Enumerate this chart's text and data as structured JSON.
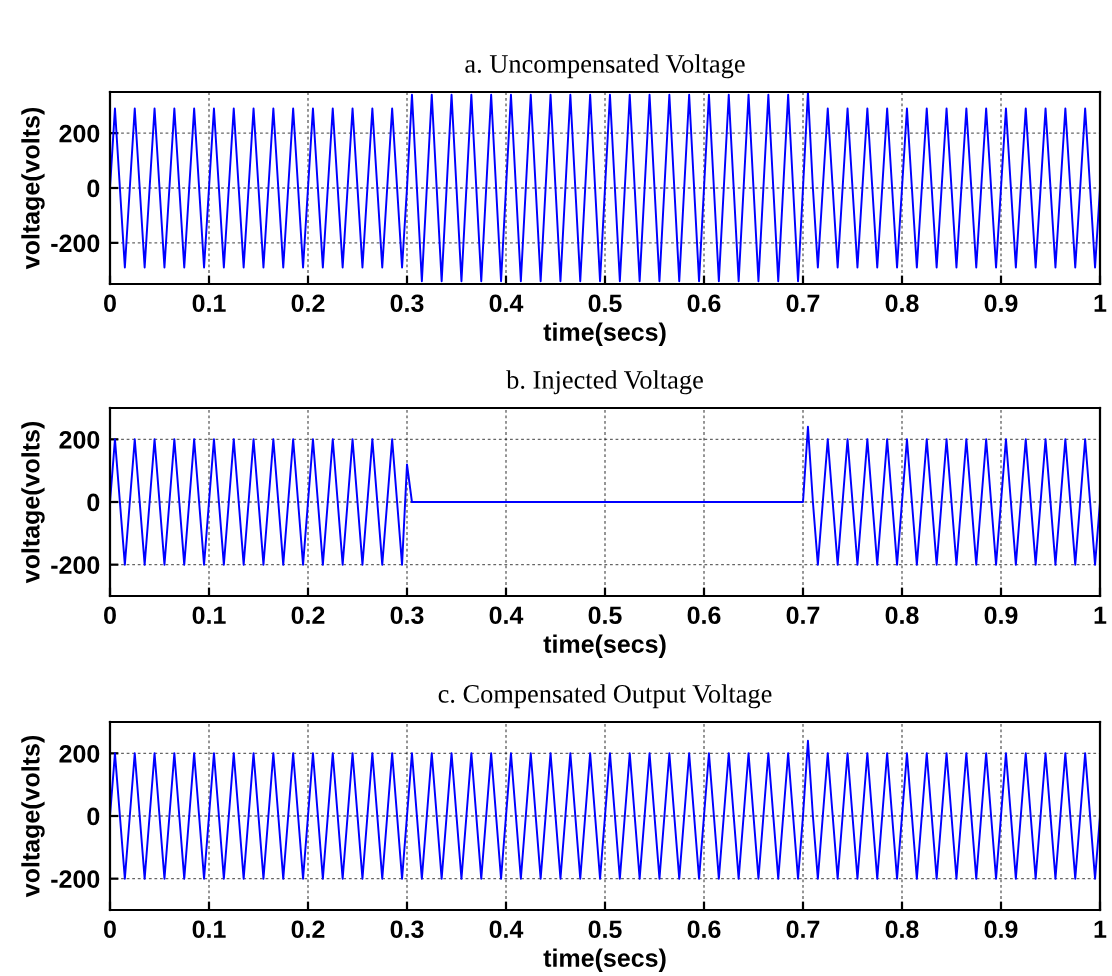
{
  "chart_data": [
    {
      "type": "line",
      "title": "a. Uncompensated Voltage",
      "xlabel": "time(secs)",
      "ylabel": "voltage(volts)",
      "xlim": [
        0,
        1
      ],
      "xticks": [
        0,
        0.1,
        0.2,
        0.3,
        0.4,
        0.5,
        0.6,
        0.7,
        0.8,
        0.9,
        1
      ],
      "ylim": [
        -350,
        350
      ],
      "yticks": [
        -200,
        0,
        200
      ],
      "grid": true,
      "x": [
        0,
        0.005,
        0.01,
        0.015,
        0.02,
        0.025,
        0.03,
        0.035,
        0.04,
        0.045,
        0.05,
        0.055,
        0.06,
        0.065,
        0.07,
        0.075,
        0.08,
        0.085,
        0.09,
        0.095,
        0.1,
        0.105,
        0.11,
        0.115,
        0.12,
        0.125,
        0.13,
        0.135,
        0.14,
        0.145,
        0.15,
        0.155,
        0.16,
        0.165,
        0.17,
        0.175,
        0.18,
        0.185,
        0.19,
        0.195,
        0.2,
        0.205,
        0.21,
        0.215,
        0.22,
        0.225,
        0.23,
        0.235,
        0.24,
        0.245,
        0.25,
        0.255,
        0.26,
        0.265,
        0.27,
        0.275,
        0.28,
        0.285,
        0.29,
        0.295,
        0.3,
        0.305,
        0.31,
        0.315,
        0.32,
        0.325,
        0.33,
        0.335,
        0.34,
        0.345,
        0.35,
        0.355,
        0.36,
        0.365,
        0.37,
        0.375,
        0.38,
        0.385,
        0.39,
        0.395,
        0.4,
        0.405,
        0.41,
        0.415,
        0.42,
        0.425,
        0.43,
        0.435,
        0.44,
        0.445,
        0.45,
        0.455,
        0.46,
        0.465,
        0.47,
        0.475,
        0.48,
        0.485,
        0.49,
        0.495,
        0.5,
        0.505,
        0.51,
        0.515,
        0.52,
        0.525,
        0.53,
        0.535,
        0.54,
        0.545,
        0.55,
        0.555,
        0.56,
        0.565,
        0.57,
        0.575,
        0.58,
        0.585,
        0.59,
        0.595,
        0.6,
        0.605,
        0.61,
        0.615,
        0.62,
        0.625,
        0.63,
        0.635,
        0.64,
        0.645,
        0.65,
        0.655,
        0.66,
        0.665,
        0.67,
        0.675,
        0.68,
        0.685,
        0.69,
        0.695,
        0.7,
        0.705,
        0.71,
        0.715,
        0.72,
        0.725,
        0.73,
        0.735,
        0.74,
        0.745,
        0.75,
        0.755,
        0.76,
        0.765,
        0.77,
        0.775,
        0.78,
        0.785,
        0.79,
        0.795,
        0.8,
        0.805,
        0.81,
        0.815,
        0.82,
        0.825,
        0.83,
        0.835,
        0.84,
        0.845,
        0.85,
        0.855,
        0.86,
        0.865,
        0.87,
        0.875,
        0.88,
        0.885,
        0.89,
        0.895,
        0.9,
        0.905,
        0.91,
        0.915,
        0.92,
        0.925,
        0.93,
        0.935,
        0.94,
        0.945,
        0.95,
        0.955,
        0.96,
        0.965,
        0.97,
        0.975,
        0.98,
        0.985,
        0.99,
        0.995,
        1
      ],
      "series": [
        {
          "color": "#0000ff",
          "values": [
            0,
            290,
            0,
            -290,
            0,
            290,
            0,
            -290,
            0,
            290,
            0,
            -290,
            0,
            290,
            0,
            -290,
            0,
            290,
            0,
            -290,
            0,
            290,
            0,
            -290,
            0,
            290,
            0,
            -290,
            0,
            290,
            0,
            -290,
            0,
            290,
            0,
            -290,
            0,
            290,
            0,
            -290,
            0,
            290,
            0,
            -290,
            0,
            290,
            0,
            -290,
            0,
            290,
            0,
            -290,
            0,
            290,
            0,
            -290,
            0,
            290,
            0,
            -290,
            0,
            340,
            0,
            -340,
            0,
            340,
            0,
            -340,
            0,
            340,
            0,
            -340,
            0,
            340,
            0,
            -340,
            0,
            340,
            0,
            -340,
            0,
            340,
            0,
            -340,
            0,
            340,
            0,
            -340,
            0,
            340,
            0,
            -340,
            0,
            340,
            0,
            -340,
            0,
            340,
            0,
            -340,
            0,
            340,
            0,
            -340,
            0,
            340,
            0,
            -340,
            0,
            340,
            0,
            -340,
            0,
            340,
            0,
            -340,
            0,
            340,
            0,
            -340,
            0,
            340,
            0,
            -340,
            0,
            340,
            0,
            -340,
            0,
            340,
            0,
            -340,
            0,
            340,
            0,
            -340,
            0,
            340,
            0,
            -340,
            0,
            350,
            0,
            -290,
            0,
            290,
            0,
            -290,
            0,
            290,
            0,
            -290,
            0,
            290,
            0,
            -290,
            0,
            290,
            0,
            -290,
            0,
            290,
            0,
            -290,
            0,
            290,
            0,
            -290,
            0,
            290,
            0,
            -290,
            0,
            290,
            0,
            -290,
            0,
            290,
            0,
            -290,
            0,
            290,
            0,
            -290,
            0,
            290,
            0,
            -290,
            0,
            290,
            0,
            -290,
            0,
            290,
            0,
            -290,
            0,
            290,
            0,
            -290,
            0
          ]
        }
      ]
    },
    {
      "type": "line",
      "title": "b. Injected Voltage",
      "xlabel": "time(secs)",
      "ylabel": "voltage(volts)",
      "xlim": [
        0,
        1
      ],
      "xticks": [
        0,
        0.1,
        0.2,
        0.3,
        0.4,
        0.5,
        0.6,
        0.7,
        0.8,
        0.9,
        1
      ],
      "ylim": [
        -300,
        300
      ],
      "yticks": [
        -200,
        0,
        200
      ],
      "grid": true,
      "series": [
        {
          "color": "#0000ff",
          "x": [
            0,
            0.005,
            0.01,
            0.015,
            0.02,
            0.025,
            0.03,
            0.035,
            0.04,
            0.045,
            0.05,
            0.055,
            0.06,
            0.065,
            0.07,
            0.075,
            0.08,
            0.085,
            0.09,
            0.095,
            0.1,
            0.105,
            0.11,
            0.115,
            0.12,
            0.125,
            0.13,
            0.135,
            0.14,
            0.145,
            0.15,
            0.155,
            0.16,
            0.165,
            0.17,
            0.175,
            0.18,
            0.185,
            0.19,
            0.195,
            0.2,
            0.205,
            0.21,
            0.215,
            0.22,
            0.225,
            0.23,
            0.235,
            0.24,
            0.245,
            0.25,
            0.255,
            0.26,
            0.265,
            0.27,
            0.275,
            0.28,
            0.285,
            0.29,
            0.295,
            0.3,
            0.305,
            0.7,
            0.705,
            0.71,
            0.715,
            0.72,
            0.725,
            0.73,
            0.735,
            0.74,
            0.745,
            0.75,
            0.755,
            0.76,
            0.765,
            0.77,
            0.775,
            0.78,
            0.785,
            0.79,
            0.795,
            0.8,
            0.805,
            0.81,
            0.815,
            0.82,
            0.825,
            0.83,
            0.835,
            0.84,
            0.845,
            0.85,
            0.855,
            0.86,
            0.865,
            0.87,
            0.875,
            0.88,
            0.885,
            0.89,
            0.895,
            0.9,
            0.905,
            0.91,
            0.915,
            0.92,
            0.925,
            0.93,
            0.935,
            0.94,
            0.945,
            0.95,
            0.955,
            0.96,
            0.965,
            0.97,
            0.975,
            0.98,
            0.985,
            0.99,
            0.995,
            1
          ],
          "values": [
            0,
            200,
            0,
            -200,
            0,
            200,
            0,
            -200,
            0,
            200,
            0,
            -200,
            0,
            200,
            0,
            -200,
            0,
            200,
            0,
            -200,
            0,
            200,
            0,
            -200,
            0,
            200,
            0,
            -200,
            0,
            200,
            0,
            -200,
            0,
            200,
            0,
            -200,
            0,
            200,
            0,
            -200,
            0,
            200,
            0,
            -200,
            0,
            200,
            0,
            -200,
            0,
            200,
            0,
            -200,
            0,
            200,
            0,
            -200,
            0,
            200,
            0,
            -200,
            120,
            0,
            0,
            240,
            0,
            -200,
            0,
            200,
            0,
            -200,
            0,
            200,
            0,
            -200,
            0,
            200,
            0,
            -200,
            0,
            200,
            0,
            -200,
            0,
            200,
            0,
            -200,
            0,
            200,
            0,
            -200,
            0,
            200,
            0,
            -200,
            0,
            200,
            0,
            -200,
            0,
            200,
            0,
            -200,
            0,
            200,
            0,
            -200,
            0,
            200,
            0,
            -200,
            0,
            200,
            0,
            -200,
            0,
            200,
            0,
            -200,
            0,
            200,
            0,
            -200,
            0
          ]
        }
      ]
    },
    {
      "type": "line",
      "title": "c. Compensated Output Voltage",
      "xlabel": "time(secs)",
      "ylabel": "voltage(volts)",
      "xlim": [
        0,
        1
      ],
      "xticks": [
        0,
        0.1,
        0.2,
        0.3,
        0.4,
        0.5,
        0.6,
        0.7,
        0.8,
        0.9,
        1
      ],
      "ylim": [
        -300,
        300
      ],
      "yticks": [
        -200,
        0,
        200
      ],
      "grid": true,
      "x": [
        0,
        0.005,
        0.01,
        0.015,
        0.02,
        0.025,
        0.03,
        0.035,
        0.04,
        0.045,
        0.05,
        0.055,
        0.06,
        0.065,
        0.07,
        0.075,
        0.08,
        0.085,
        0.09,
        0.095,
        0.1,
        0.105,
        0.11,
        0.115,
        0.12,
        0.125,
        0.13,
        0.135,
        0.14,
        0.145,
        0.15,
        0.155,
        0.16,
        0.165,
        0.17,
        0.175,
        0.18,
        0.185,
        0.19,
        0.195,
        0.2,
        0.205,
        0.21,
        0.215,
        0.22,
        0.225,
        0.23,
        0.235,
        0.24,
        0.245,
        0.25,
        0.255,
        0.26,
        0.265,
        0.27,
        0.275,
        0.28,
        0.285,
        0.29,
        0.295,
        0.3,
        0.305,
        0.31,
        0.315,
        0.32,
        0.325,
        0.33,
        0.335,
        0.34,
        0.345,
        0.35,
        0.355,
        0.36,
        0.365,
        0.37,
        0.375,
        0.38,
        0.385,
        0.39,
        0.395,
        0.4,
        0.405,
        0.41,
        0.415,
        0.42,
        0.425,
        0.43,
        0.435,
        0.44,
        0.445,
        0.45,
        0.455,
        0.46,
        0.465,
        0.47,
        0.475,
        0.48,
        0.485,
        0.49,
        0.495,
        0.5,
        0.505,
        0.51,
        0.515,
        0.52,
        0.525,
        0.53,
        0.535,
        0.54,
        0.545,
        0.55,
        0.555,
        0.56,
        0.565,
        0.57,
        0.575,
        0.58,
        0.585,
        0.59,
        0.595,
        0.6,
        0.605,
        0.61,
        0.615,
        0.62,
        0.625,
        0.63,
        0.635,
        0.64,
        0.645,
        0.65,
        0.655,
        0.66,
        0.665,
        0.67,
        0.675,
        0.68,
        0.685,
        0.69,
        0.695,
        0.7,
        0.705,
        0.71,
        0.715,
        0.72,
        0.725,
        0.73,
        0.735,
        0.74,
        0.745,
        0.75,
        0.755,
        0.76,
        0.765,
        0.77,
        0.775,
        0.78,
        0.785,
        0.79,
        0.795,
        0.8,
        0.805,
        0.81,
        0.815,
        0.82,
        0.825,
        0.83,
        0.835,
        0.84,
        0.845,
        0.85,
        0.855,
        0.86,
        0.865,
        0.87,
        0.875,
        0.88,
        0.885,
        0.89,
        0.895,
        0.9,
        0.905,
        0.91,
        0.915,
        0.92,
        0.925,
        0.93,
        0.935,
        0.94,
        0.945,
        0.95,
        0.955,
        0.96,
        0.965,
        0.97,
        0.975,
        0.98,
        0.985,
        0.99,
        0.995,
        1
      ],
      "series": [
        {
          "color": "#0000ff",
          "values": [
            0,
            200,
            0,
            -200,
            0,
            200,
            0,
            -200,
            0,
            200,
            0,
            -200,
            0,
            200,
            0,
            -200,
            0,
            200,
            0,
            -200,
            0,
            200,
            0,
            -200,
            0,
            200,
            0,
            -200,
            0,
            200,
            0,
            -200,
            0,
            200,
            0,
            -200,
            0,
            200,
            0,
            -200,
            0,
            200,
            0,
            -200,
            0,
            200,
            0,
            -200,
            0,
            200,
            0,
            -200,
            0,
            200,
            0,
            -200,
            0,
            200,
            0,
            -200,
            0,
            200,
            0,
            -200,
            0,
            200,
            0,
            -200,
            0,
            200,
            0,
            -200,
            0,
            200,
            0,
            -200,
            0,
            200,
            0,
            -200,
            0,
            200,
            0,
            -200,
            0,
            200,
            0,
            -200,
            0,
            200,
            0,
            -200,
            0,
            200,
            0,
            -200,
            0,
            200,
            0,
            -200,
            0,
            200,
            0,
            -200,
            0,
            200,
            0,
            -200,
            0,
            200,
            0,
            -200,
            0,
            200,
            0,
            -200,
            0,
            200,
            0,
            -200,
            0,
            200,
            0,
            -200,
            0,
            200,
            0,
            -200,
            0,
            200,
            0,
            -200,
            0,
            200,
            0,
            -200,
            0,
            200,
            0,
            -200,
            0,
            240,
            0,
            -200,
            0,
            200,
            0,
            -200,
            0,
            200,
            0,
            -200,
            0,
            200,
            0,
            -200,
            0,
            200,
            0,
            -200,
            0,
            200,
            0,
            -200,
            0,
            200,
            0,
            -200,
            0,
            200,
            0,
            -200,
            0,
            200,
            0,
            -200,
            0,
            200,
            0,
            -200,
            0,
            200,
            0,
            -200,
            0,
            200,
            0,
            -200,
            0,
            200,
            0,
            -200,
            0,
            200,
            0,
            -200,
            0,
            200,
            0,
            -200,
            0
          ]
        }
      ]
    }
  ]
}
